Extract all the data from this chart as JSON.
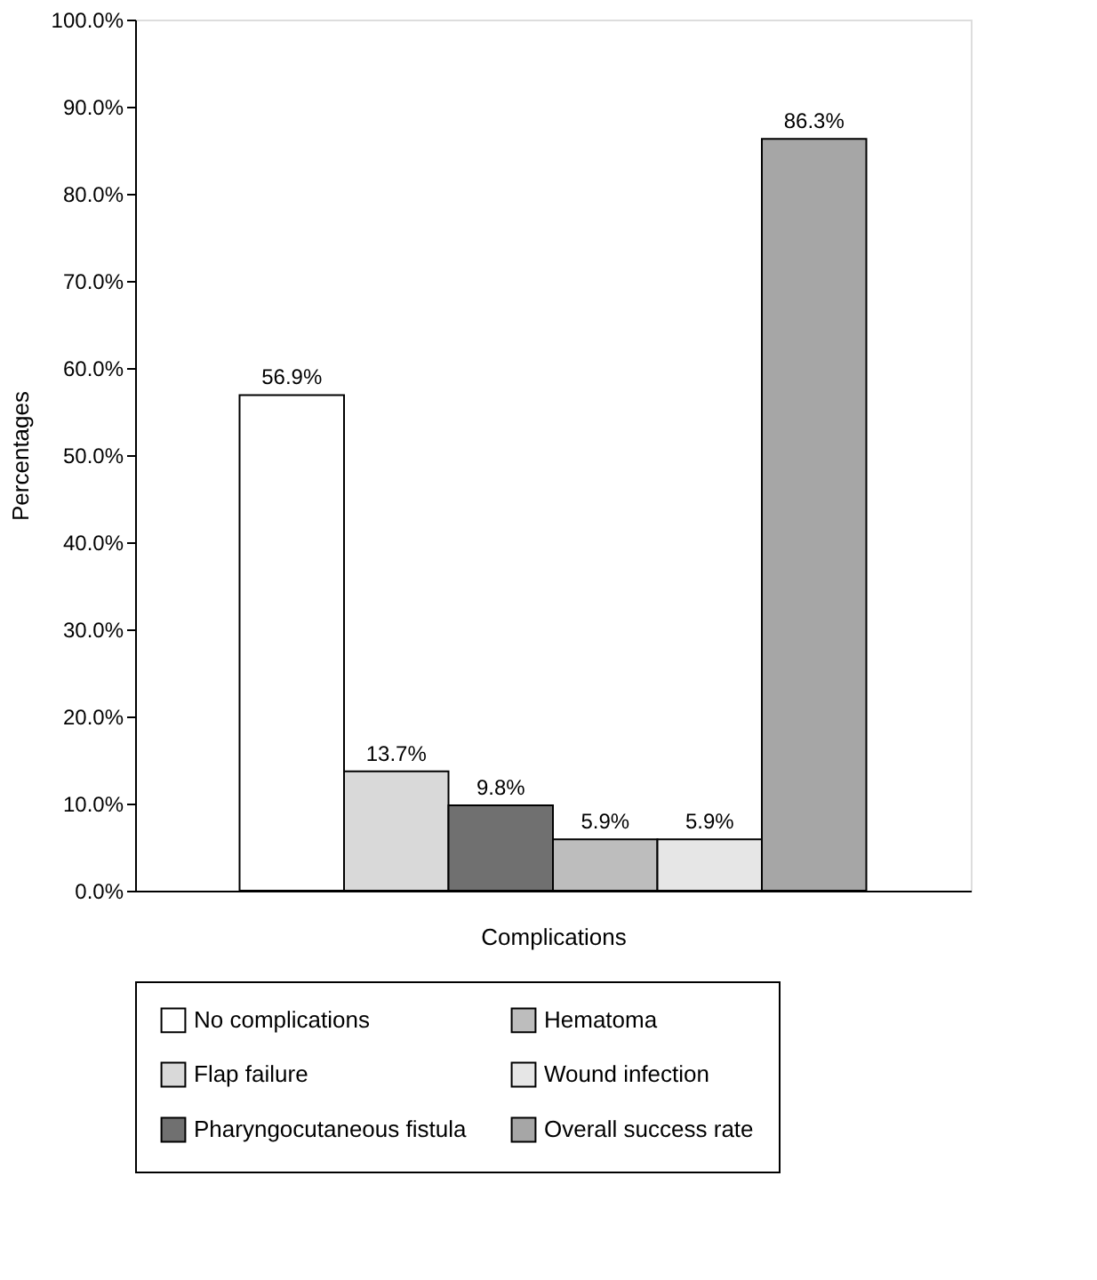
{
  "chart_data": {
    "type": "bar",
    "xlabel": "Complications",
    "ylabel": "Percentages",
    "categories": [
      null
    ],
    "series": [
      {
        "name": "No complications",
        "color": "#ffffff",
        "values": [
          56.9
        ],
        "value_labels": [
          "56.9%"
        ]
      },
      {
        "name": "Flap failure",
        "color": "#d9d9d9",
        "values": [
          13.7
        ],
        "value_labels": [
          "13.7%"
        ]
      },
      {
        "name": "Pharyngocutaneous fistula",
        "color": "#707070",
        "values": [
          9.8
        ],
        "value_labels": [
          "9.8%"
        ]
      },
      {
        "name": "Hematoma",
        "color": "#bdbdbd",
        "values": [
          5.9
        ],
        "value_labels": [
          "5.9%"
        ]
      },
      {
        "name": "Wound infection",
        "color": "#e6e6e6",
        "values": [
          5.9
        ],
        "value_labels": [
          "5.9%"
        ]
      },
      {
        "name": "Overall success rate",
        "color": "#a6a6a6",
        "values": [
          86.3
        ],
        "value_labels": [
          "86.3%"
        ]
      }
    ],
    "ylim": [
      0,
      100
    ],
    "yticks": [
      {
        "value": 0,
        "label": "0.0%"
      },
      {
        "value": 10,
        "label": "10.0%"
      },
      {
        "value": 20,
        "label": "20.0%"
      },
      {
        "value": 30,
        "label": "30.0%"
      },
      {
        "value": 40,
        "label": "40.0%"
      },
      {
        "value": 50,
        "label": "50.0%"
      },
      {
        "value": 60,
        "label": "60.0%"
      },
      {
        "value": 70,
        "label": "70.0%"
      },
      {
        "value": 80,
        "label": "80.0%"
      },
      {
        "value": 90,
        "label": "90.0%"
      },
      {
        "value": 100,
        "label": "100.0%"
      }
    ],
    "grid": false,
    "legend": "bottom",
    "tick_labels": "y"
  }
}
